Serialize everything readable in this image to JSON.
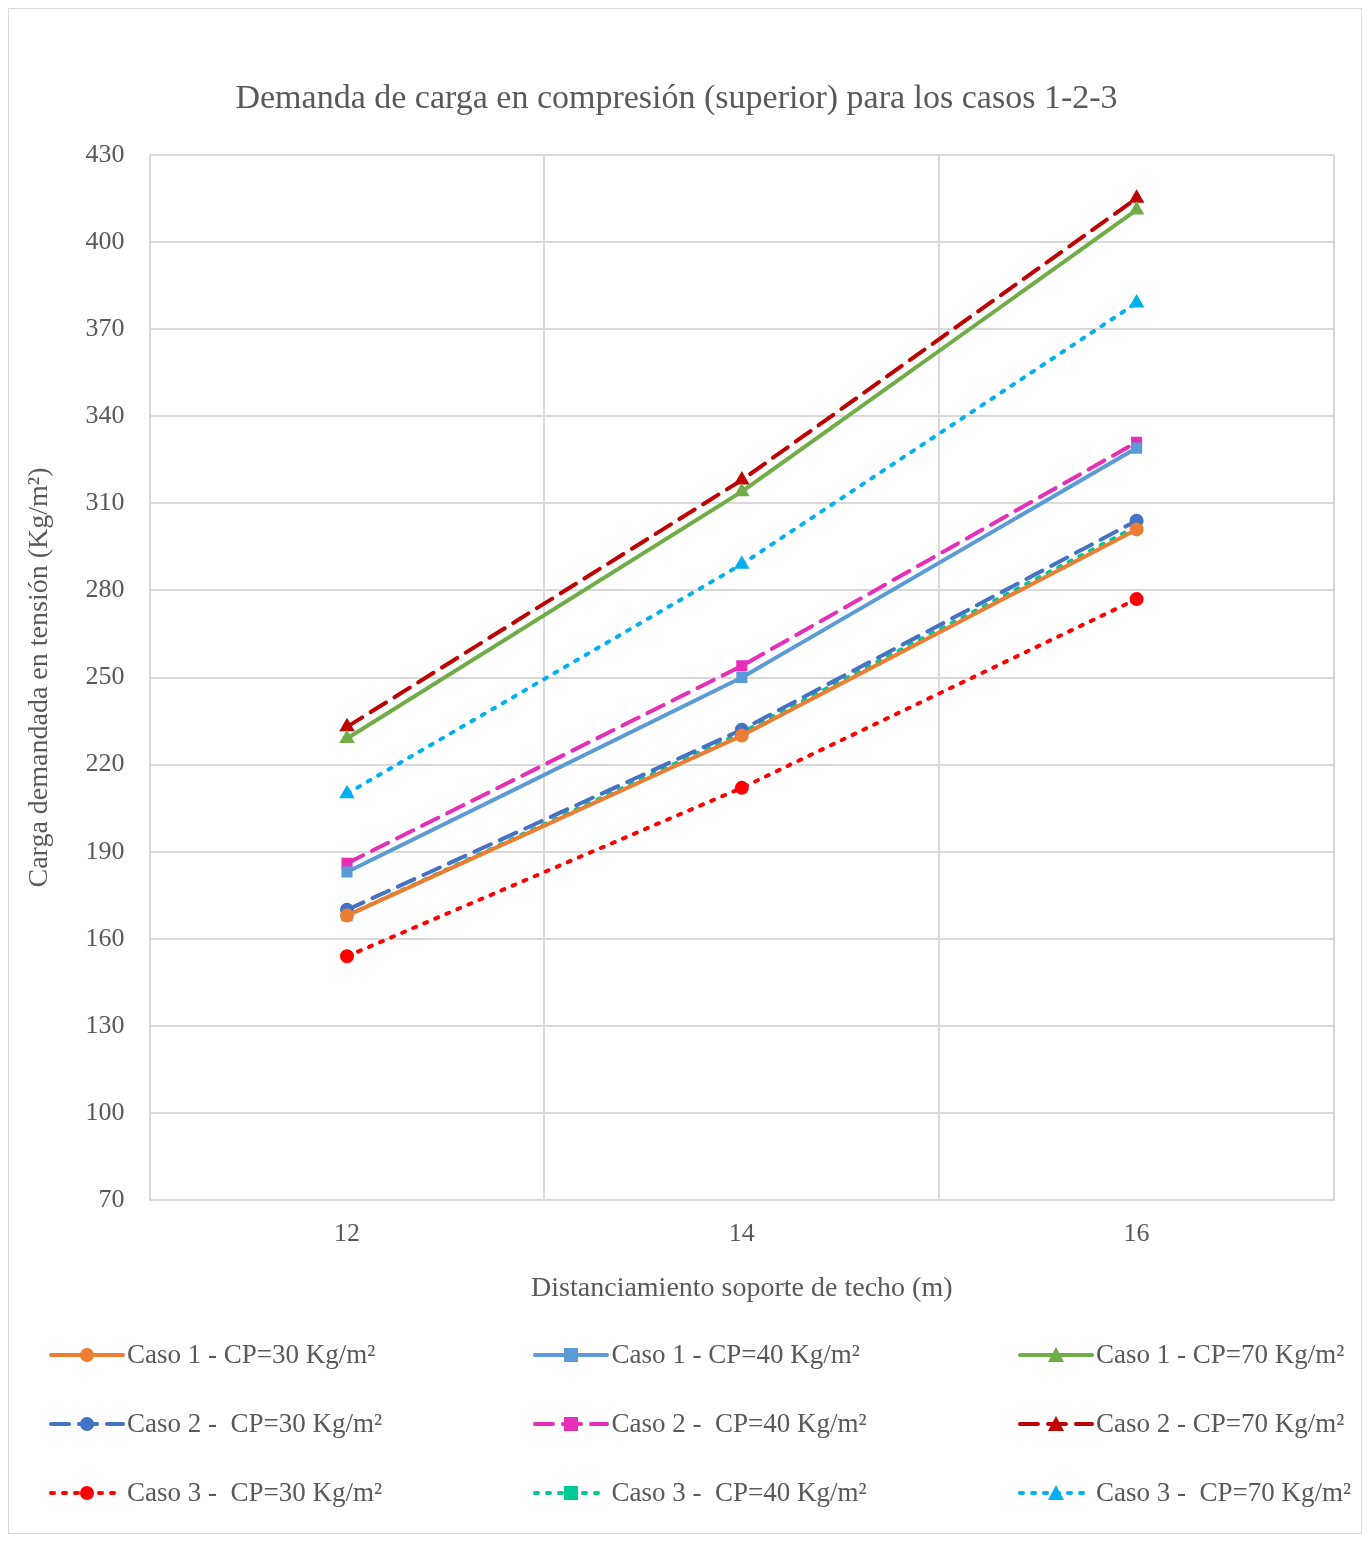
{
  "chart_data": {
    "type": "line",
    "title": "Demanda de carga en compresión (superior) para los casos 1-2-3",
    "xlabel": "Distanciamiento soporte de techo (m)",
    "ylabel": "Carga demandada en tensión (Kg/m²)",
    "categories": [
      "12",
      "14",
      "16"
    ],
    "ylim": [
      70,
      430
    ],
    "yticks": [
      70,
      100,
      130,
      160,
      190,
      220,
      250,
      280,
      310,
      340,
      370,
      400,
      430
    ],
    "grid": true,
    "legend": "bottom",
    "series": [
      {
        "name": "Caso 1 - CP=30 Kg/m²",
        "color": "#ed7d31",
        "marker": "circle",
        "line_style": "solid",
        "values": [
          168,
          230,
          301
        ]
      },
      {
        "name": "Caso 1 - CP=40 Kg/m²",
        "color": "#5b9bd5",
        "marker": "square",
        "line_style": "solid",
        "values": [
          183,
          250,
          329
        ]
      },
      {
        "name": "Caso 1 - CP=70 Kg/m²",
        "color": "#70ad47",
        "marker": "triangle",
        "line_style": "solid",
        "values": [
          229,
          314,
          411
        ]
      },
      {
        "name": "Caso 2 -  CP=30 Kg/m²",
        "color": "#4472c4",
        "marker": "circle",
        "line_style": "dashed",
        "values": [
          170,
          232,
          304
        ]
      },
      {
        "name": "Caso 2 -  CP=40 Kg/m²",
        "color": "#e62eb8",
        "marker": "square",
        "line_style": "dashed",
        "values": [
          186,
          254,
          331
        ]
      },
      {
        "name": "Caso 2 - CP=70 Kg/m²",
        "color": "#c00000",
        "marker": "triangle",
        "line_style": "dashed",
        "values": [
          233,
          318,
          415
        ]
      },
      {
        "name": "Caso 3 -  CP=30 Kg/m²",
        "color": "#ff0000",
        "marker": "circle",
        "line_style": "dotted",
        "values": [
          154,
          212,
          277
        ]
      },
      {
        "name": "Caso 3 -  CP=40 Kg/m²",
        "color": "#00c896",
        "marker": "square",
        "line_style": "dotted",
        "values": [
          168,
          231,
          302
        ]
      },
      {
        "name": "Caso 3 -  CP=70 Kg/m²",
        "color": "#00b0f0",
        "marker": "triangle",
        "line_style": "dotted",
        "values": [
          210,
          289,
          379
        ]
      }
    ]
  }
}
